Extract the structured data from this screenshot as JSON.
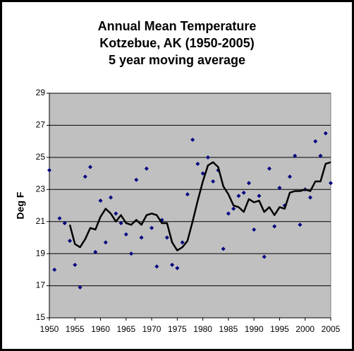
{
  "chart_data": {
    "type": "scatter",
    "title": [
      "Annual Mean Temperature",
      "Kotzebue, AK (1950-2005)",
      "5 year moving average"
    ],
    "y_label": "Deg F",
    "x": [
      1950,
      1951,
      1952,
      1953,
      1954,
      1955,
      1956,
      1957,
      1958,
      1959,
      1960,
      1961,
      1962,
      1963,
      1964,
      1965,
      1966,
      1967,
      1968,
      1969,
      1970,
      1971,
      1972,
      1973,
      1974,
      1975,
      1976,
      1977,
      1978,
      1979,
      1980,
      1981,
      1982,
      1983,
      1984,
      1985,
      1986,
      1987,
      1988,
      1989,
      1990,
      1991,
      1992,
      1993,
      1994,
      1995,
      1996,
      1997,
      1998,
      1999,
      2000,
      2001,
      2002,
      2003,
      2004,
      2005
    ],
    "series": [
      {
        "mode": "markers",
        "color": "#000080",
        "values": [
          24.2,
          18.0,
          21.2,
          20.9,
          19.8,
          18.3,
          16.9,
          23.8,
          24.4,
          19.1,
          22.3,
          19.7,
          22.5,
          21.5,
          20.9,
          20.2,
          19.0,
          23.6,
          20.0,
          24.3,
          20.6,
          18.2,
          21.1,
          20.0,
          18.3,
          18.1,
          19.7,
          22.7,
          26.1,
          24.6,
          24.0,
          25.0,
          23.5,
          24.2,
          19.3,
          21.5,
          21.8,
          22.6,
          22.8,
          23.4,
          20.5,
          22.6,
          18.8,
          24.3,
          20.7,
          23.1,
          22.0,
          23.8,
          25.1,
          20.8,
          23.0,
          22.5,
          26.0,
          25.1,
          26.5,
          23.4
        ]
      },
      {
        "mode": "line",
        "color": "#000000",
        "values": [
          null,
          null,
          null,
          null,
          20.8,
          19.6,
          19.4,
          19.9,
          20.6,
          20.5,
          21.3,
          21.8,
          21.5,
          21.0,
          21.4,
          20.9,
          20.8,
          21.1,
          20.8,
          21.4,
          21.5,
          21.4,
          20.9,
          20.9,
          19.7,
          19.2,
          19.4,
          19.8,
          21.0,
          22.3,
          23.5,
          24.5,
          24.7,
          24.4,
          23.2,
          22.7,
          22.0,
          21.9,
          21.6,
          22.4,
          22.2,
          22.3,
          21.6,
          21.9,
          21.4,
          21.9,
          21.8,
          22.8,
          22.9,
          22.9,
          23.0,
          22.9,
          23.5,
          23.5,
          24.6,
          24.7
        ]
      }
    ],
    "xlim": [
      1950,
      2005
    ],
    "xticks": [
      1950,
      1955,
      1960,
      1965,
      1970,
      1975,
      1980,
      1985,
      1990,
      1995,
      2000,
      2005
    ],
    "ylim": [
      15,
      29
    ],
    "yticks": [
      15,
      17,
      19,
      21,
      23,
      25,
      27,
      29
    ],
    "grid": true,
    "plot_background": "#c0c0c0"
  }
}
